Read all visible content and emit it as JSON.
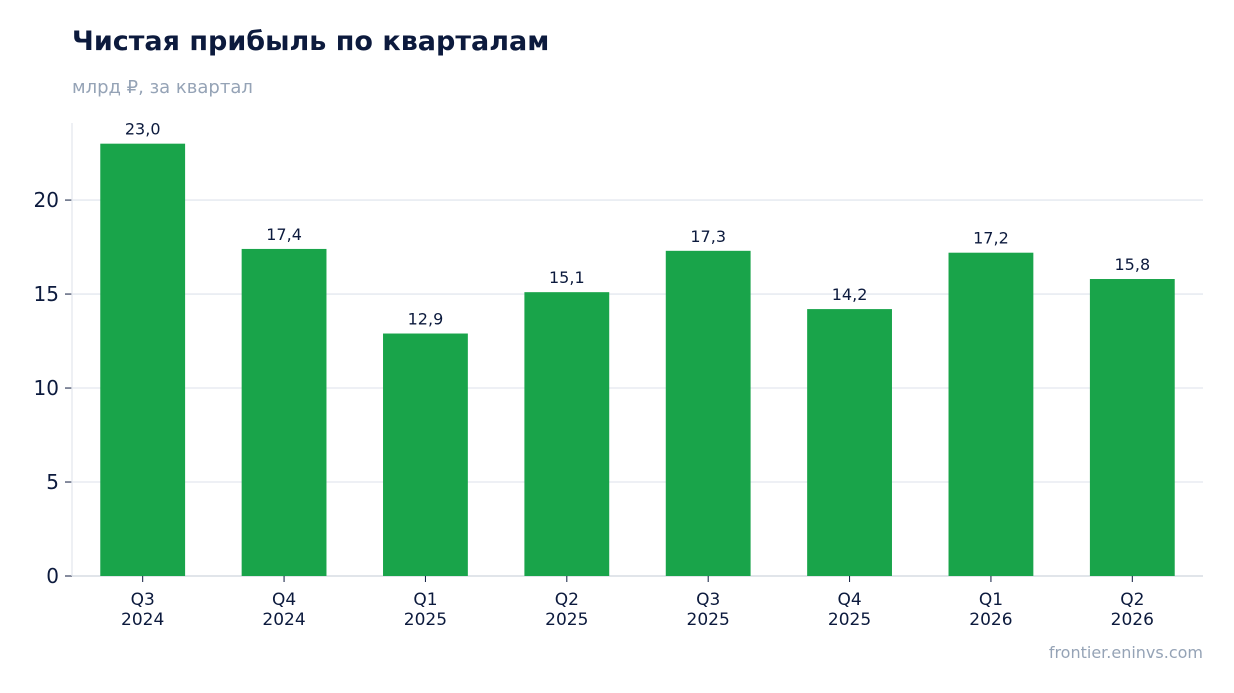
{
  "header": {
    "title": "Чистая прибыль по кварталам",
    "subtitle": "млрд ₽, за квартал"
  },
  "footer": {
    "source": "frontier.eninvs.com"
  },
  "colors": {
    "bar": "#19a44a",
    "grid": "#e4e8ef",
    "axis": "#cfd5de",
    "tick_text": "#0c1a3d",
    "label_text": "#0c1a3d"
  },
  "chart_data": {
    "type": "bar",
    "title": "Чистая прибыль по кварталам",
    "subtitle": "млрд ₽, за квартал",
    "categories": [
      [
        "Q3",
        "2024"
      ],
      [
        "Q4",
        "2024"
      ],
      [
        "Q1",
        "2025"
      ],
      [
        "Q2",
        "2025"
      ],
      [
        "Q3",
        "2025"
      ],
      [
        "Q4",
        "2025"
      ],
      [
        "Q1",
        "2026"
      ],
      [
        "Q2",
        "2026"
      ]
    ],
    "values": [
      23.0,
      17.4,
      12.9,
      15.1,
      17.3,
      14.2,
      17.2,
      15.8
    ],
    "data_labels": [
      "23,0",
      "17,4",
      "12,9",
      "15,1",
      "17,3",
      "14,2",
      "17,2",
      "15,8"
    ],
    "y_ticks": [
      0,
      5,
      10,
      15,
      20
    ],
    "ylim": [
      0,
      24.1
    ],
    "grid": true,
    "legend": "none"
  }
}
